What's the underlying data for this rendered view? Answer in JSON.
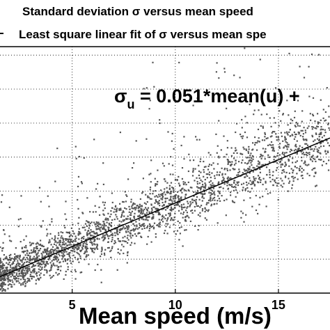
{
  "chart_data": {
    "type": "scatter",
    "xlabel": "Mean speed (m/s)",
    "ylabel": "",
    "xlim": [
      1.5,
      17.5
    ],
    "ylim": [
      0,
      1.45
    ],
    "x_ticks": [
      5,
      10,
      15
    ],
    "grid": "dotted",
    "legend": {
      "position": "top",
      "entries": [
        {
          "label_before": "Standard deviation ",
          "symbol": "σ",
          "label_after": " versus mean speed",
          "marker": "dot"
        },
        {
          "label_before": "Least square linear fit of  ",
          "symbol": "σ",
          "label_after": " versus mean spe",
          "marker": "line"
        }
      ]
    },
    "annotation": {
      "prefix": "σ",
      "subscript": "u",
      "text": " = 0.051*mean(u) +"
    },
    "series": [
      {
        "name": "Standard deviation σ versus mean speed",
        "kind": "scatter",
        "color": "#555555",
        "trend_slope": 0.051,
        "trend_intercept": 0.02,
        "x_range": [
          1.5,
          17.5
        ],
        "spread_sd": 0.045,
        "outlier_fraction": 0.09
      },
      {
        "name": "Least square linear fit of σ versus mean spe",
        "kind": "line",
        "color": "#000000",
        "slope": 0.051,
        "intercept": 0.02
      }
    ]
  }
}
